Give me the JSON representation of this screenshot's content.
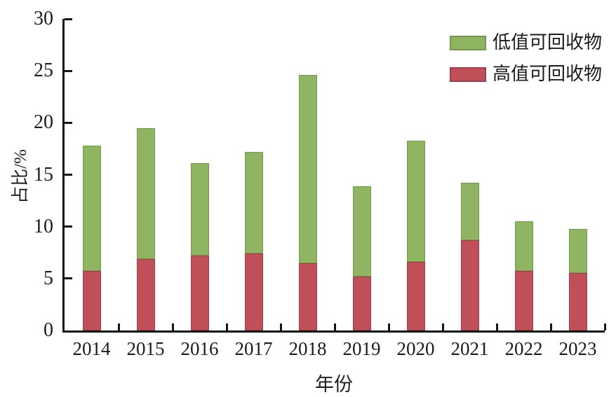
{
  "chart_data": {
    "type": "bar",
    "stacked": true,
    "title": "",
    "categories": [
      "2014",
      "2015",
      "2016",
      "2017",
      "2018",
      "2019",
      "2020",
      "2021",
      "2022",
      "2023"
    ],
    "series": [
      {
        "name": "高值可回收物",
        "color": "#bf4f58",
        "border_color": "#a23d49",
        "values": [
          5.7,
          6.9,
          7.2,
          7.4,
          6.5,
          5.2,
          6.6,
          8.7,
          5.7,
          5.5
        ]
      },
      {
        "name": "低值可回收物",
        "color": "#8fb462",
        "border_color": "#75994a",
        "values": [
          12.1,
          12.6,
          8.9,
          9.8,
          18.1,
          8.7,
          11.7,
          5.5,
          4.8,
          4.3
        ]
      }
    ],
    "stack_totals": [
      17.8,
      19.5,
      16.1,
      17.2,
      24.6,
      13.9,
      18.3,
      14.2,
      10.5,
      9.8
    ],
    "legend_order_top_to_bottom": [
      1,
      0
    ],
    "legend_position": "top-right",
    "xlabel": "年份",
    "ylabel": "占比/%",
    "ylim": [
      0,
      30
    ],
    "yticks": [
      0,
      5,
      10,
      15,
      20,
      25,
      30
    ],
    "grid": false,
    "colors": {
      "axis": "#161616",
      "text": "#1c1c1c",
      "background": "#ffffff"
    }
  }
}
